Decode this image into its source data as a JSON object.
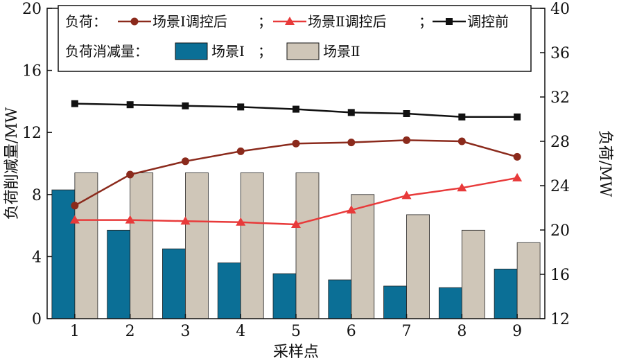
{
  "chart_data": {
    "type": "bar",
    "categories": [
      "1",
      "2",
      "3",
      "4",
      "5",
      "6",
      "7",
      "8",
      "9"
    ],
    "xlabel": "采样点",
    "ylabel_left": "负荷削减量/MW",
    "ylabel_right": "负荷/MW",
    "ylim_left": [
      0,
      20
    ],
    "ylim_right": [
      12,
      40
    ],
    "yticks_left": [
      0,
      4,
      8,
      12,
      16,
      20
    ],
    "yticks_right": [
      12,
      16,
      20,
      24,
      28,
      32,
      36,
      40
    ],
    "legend_placement": "top",
    "legend": {
      "row1_prefix": "负荷：",
      "row1_sep1": "；",
      "row1_sep2": "；",
      "row2_prefix": "负荷消减量：",
      "row2_sep": "；"
    },
    "bar_series": [
      {
        "name": "场景Ⅰ",
        "color": "#0b6f96",
        "values": [
          8.3,
          5.7,
          4.5,
          3.6,
          2.9,
          2.5,
          2.1,
          2.0,
          3.2
        ]
      },
      {
        "name": "场景Ⅱ",
        "color": "#cfc6b8",
        "values": [
          9.4,
          9.4,
          9.4,
          9.4,
          9.4,
          8.0,
          6.7,
          5.7,
          4.9
        ]
      }
    ],
    "line_series": [
      {
        "name": "场景Ⅰ调控后",
        "color": "#8b2a1c",
        "marker": "circle",
        "values": [
          22.2,
          25.0,
          26.2,
          27.1,
          27.8,
          27.9,
          28.1,
          28.0,
          26.6
        ]
      },
      {
        "name": "场景Ⅱ调控后",
        "color": "#e83a3a",
        "marker": "triangle",
        "values": [
          20.9,
          20.9,
          20.8,
          20.7,
          20.5,
          21.8,
          23.1,
          23.8,
          24.7
        ]
      },
      {
        "name": "调控前",
        "color": "#111111",
        "marker": "square",
        "values": [
          31.4,
          31.3,
          31.2,
          31.1,
          30.9,
          30.6,
          30.5,
          30.2,
          30.2
        ]
      }
    ]
  }
}
